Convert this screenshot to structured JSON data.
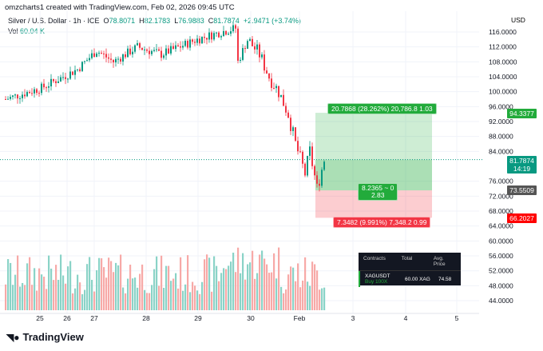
{
  "credit": "omzcharts1 created with TradingView.com, Feb 02, 2026 09:45 UTC",
  "legend": {
    "symbol": "Silver / U.S. Dollar · 1h · ICE",
    "o_label": "O",
    "o": "78.8071",
    "h_label": "H",
    "h": "82.1783",
    "l_label": "L",
    "l": "76.9883",
    "c_label": "C",
    "c": "81.7874",
    "change": "+2.9471 (+3.74%)",
    "vol_label": "Vol",
    "vol": "60.04 K"
  },
  "currency": "USD",
  "tags": {
    "target": "94.3377",
    "last": "81.7874",
    "countdown": "14:19",
    "entry": "73.5509",
    "stop": "66.2027"
  },
  "position": {
    "target_label": "20.7868 (28.262%) 20,786.8 1.03",
    "center_label": "8.2365 ~ 0",
    "center_ratio": "2.83",
    "stop_label": "7.3482 (9.991%) 7,348.2 0.99",
    "entry": 73.5509,
    "target": 94.3377,
    "stop": 66.2027
  },
  "panel": {
    "h1": "Contracts",
    "h2": "Total",
    "h3": "Avg. Price",
    "symbol": "XAGUSDT",
    "side": "Buy 100X",
    "total": "60.00 XAG",
    "avg": "74.58"
  },
  "logo": "TradingView",
  "colors": {
    "up": "#089981",
    "down": "#f23645",
    "up_vol": "#8ad3c7",
    "down_vol": "#f7a9a7"
  },
  "chart_data": {
    "type": "candlestick",
    "title": "Silver / U.S. Dollar · 1h · ICE",
    "ylabel": "USD",
    "ylim": [
      42,
      120
    ],
    "yticks": [
      "116.0000",
      "112.0000",
      "108.0000",
      "104.0000",
      "100.0000",
      "96.0000",
      "92.0000",
      "88.0000",
      "84.0000",
      "76.0000",
      "72.0000",
      "68.0000",
      "64.0000",
      "60.0000",
      "56.0000",
      "52.0000",
      "48.0000",
      "44.0000"
    ],
    "xticks": [
      "25",
      "26",
      "27",
      "28",
      "29",
      "30",
      "Feb",
      "3",
      "4",
      "5"
    ],
    "price_path_anchors": [
      [
        0,
        98
      ],
      [
        15,
        101
      ],
      [
        30,
        106
      ],
      [
        38,
        111
      ],
      [
        45,
        108
      ],
      [
        55,
        112
      ],
      [
        65,
        110
      ],
      [
        80,
        114
      ],
      [
        90,
        116
      ],
      [
        96,
        117
      ],
      [
        97,
        108
      ],
      [
        101,
        114
      ],
      [
        106,
        110
      ],
      [
        110,
        104
      ],
      [
        114,
        100
      ],
      [
        118,
        94
      ],
      [
        121,
        86
      ],
      [
        125,
        78
      ],
      [
        127,
        84
      ],
      [
        130,
        74
      ],
      [
        133,
        81.8
      ]
    ],
    "bars": 134
  }
}
